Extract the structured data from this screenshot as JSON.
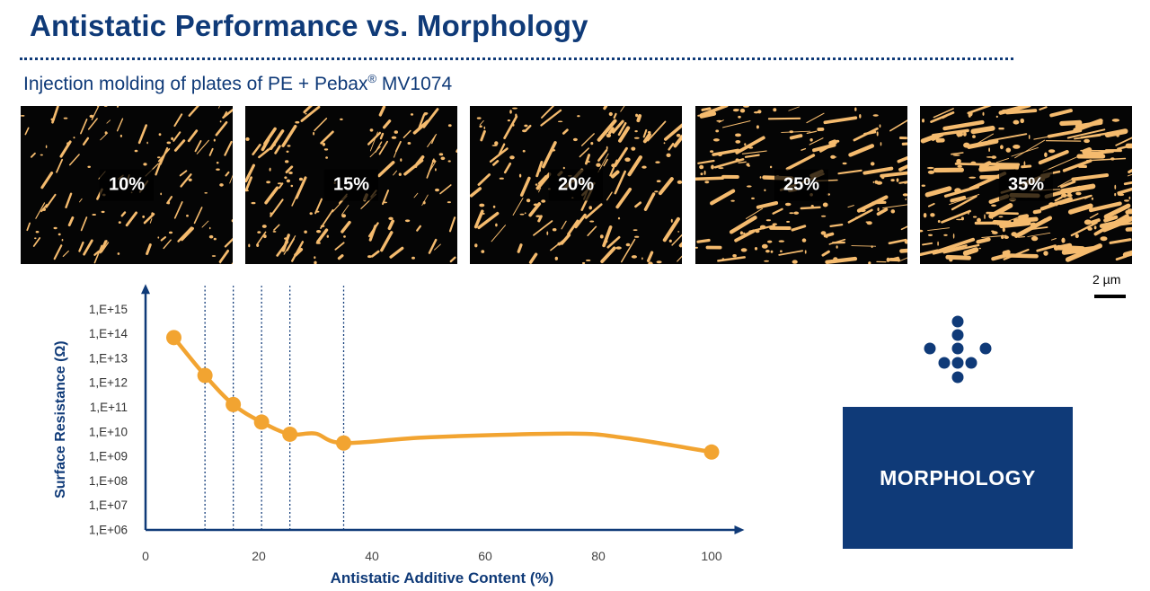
{
  "title": "Antistatic Performance vs. Morphology",
  "subtitle": {
    "main": "Injection molding of plates of PE + Pebax",
    "reg": "®",
    "suffix": " MV1074"
  },
  "micrographs": [
    {
      "label": "10%",
      "density": 0.1
    },
    {
      "label": "15%",
      "density": 0.15
    },
    {
      "label": "20%",
      "density": 0.2
    },
    {
      "label": "25%",
      "density": 0.25
    },
    {
      "label": "35%",
      "density": 0.35
    }
  ],
  "scale_bar": {
    "label": "2 µm"
  },
  "colors": {
    "brand": "#0f3a78",
    "series": "#f2a431",
    "phase": "#f5bb6e",
    "background": "#050505"
  },
  "morphology_box": {
    "label": "MORPHOLOGY"
  },
  "logo": {
    "icon": "dot-cross-logo-icon"
  },
  "chart_data": {
    "type": "line",
    "xlabel": "Antistatic Additive Content (%)",
    "ylabel": "Surface Resistance (Ω)",
    "x_ticks": [
      "0",
      "20",
      "40",
      "60",
      "80",
      "100"
    ],
    "x_tick_values": [
      0,
      20,
      40,
      60,
      80,
      100
    ],
    "y_ticks": [
      "1,E+06",
      "1,E+07",
      "1,E+08",
      "1,E+09",
      "1,E+10",
      "1,E+11",
      "1,E+12",
      "1,E+13",
      "1,E+14",
      "1,E+15"
    ],
    "y_scale": "log",
    "xlim": [
      0,
      105
    ],
    "ylim": [
      1000000.0,
      1000000000000000.0
    ],
    "series": [
      {
        "x": [
          5,
          10.5,
          15.5,
          20.5,
          25.5,
          35,
          100
        ],
        "y": [
          70000000000000.0,
          2000000000000.0,
          130000000000.0,
          25000000000.0,
          8000000000.0,
          3500000000.0,
          1500000000.0
        ]
      }
    ],
    "curve_via": [
      {
        "x": 30,
        "y": 8500000000.0
      },
      {
        "x": 50,
        "y": 6000000000.0
      },
      {
        "x": 75,
        "y": 8500000000.0
      },
      {
        "x": 85,
        "y": 5500000000.0
      }
    ],
    "vertical_markers": [
      10.5,
      15.5,
      20.5,
      25.5,
      35
    ],
    "grid": false
  }
}
